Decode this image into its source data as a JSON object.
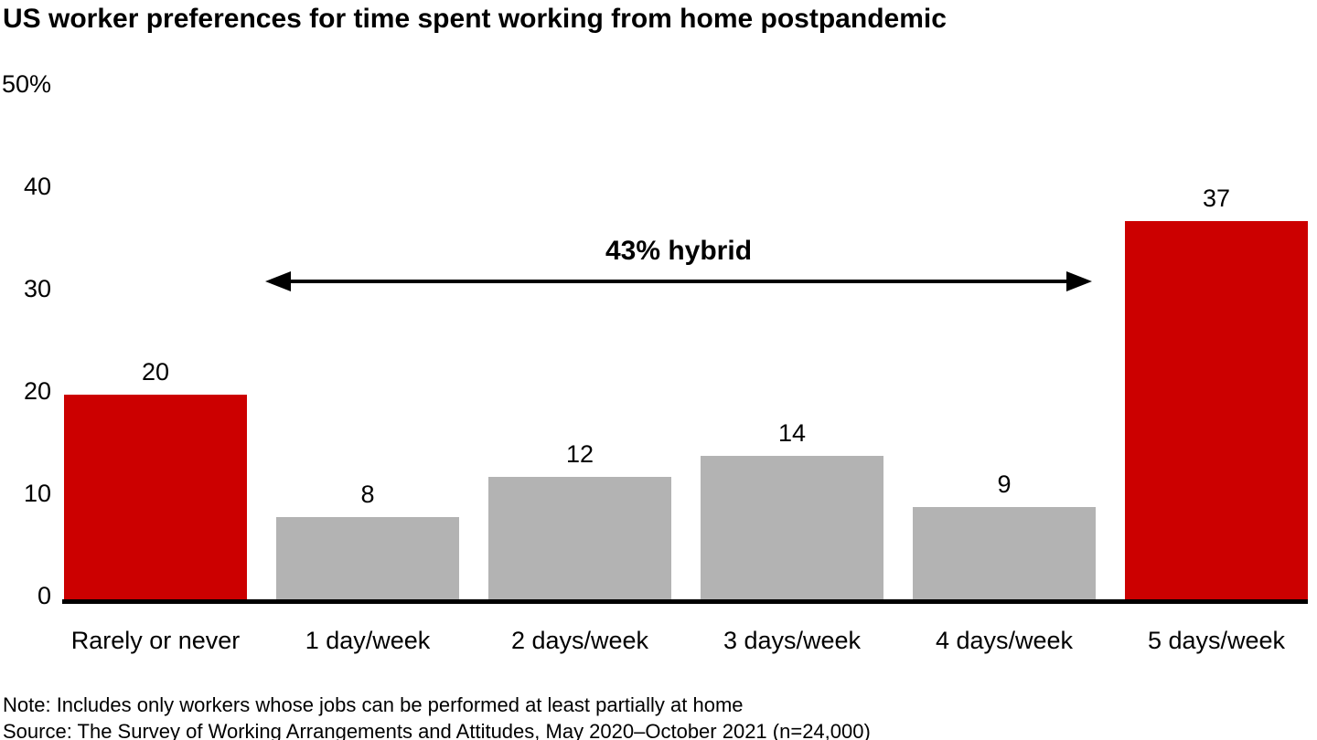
{
  "chart_data": {
    "type": "bar",
    "title": "US worker preferences for time spent working from home postpandemic",
    "categories": [
      "Rarely or never",
      "1 day/week",
      "2 days/week",
      "3 days/week",
      "4 days/week",
      "5 days/week"
    ],
    "values": [
      20,
      8,
      12,
      14,
      9,
      37
    ],
    "value_labels": [
      "20",
      "8",
      "12",
      "14",
      "9",
      "37"
    ],
    "bar_colors": [
      "#cc0000",
      "#b3b3b3",
      "#b3b3b3",
      "#b3b3b3",
      "#b3b3b3",
      "#cc0000"
    ],
    "xlabel": "",
    "ylabel": "",
    "ylim": [
      0,
      50
    ],
    "y_ticks": [
      0,
      10,
      20,
      30,
      40
    ],
    "y_top_label": "50%",
    "grid": "off",
    "legend": "none",
    "annotation": {
      "label": "43% hybrid",
      "arrow": "double-headed",
      "spans_categories": [
        "1 day/week",
        "2 days/week",
        "3 days/week",
        "4 days/week"
      ]
    }
  },
  "footer": {
    "note": "Note: Includes only workers whose jobs can be performed at least partially at home",
    "source": "Source: The Survey of Working Arrangements and Attitudes, May 2020–October 2021 (n=24,000)"
  },
  "colors": {
    "highlight_red": "#cc0000",
    "neutral_gray": "#b3b3b3",
    "text_black": "#000000",
    "background": "#ffffff"
  }
}
